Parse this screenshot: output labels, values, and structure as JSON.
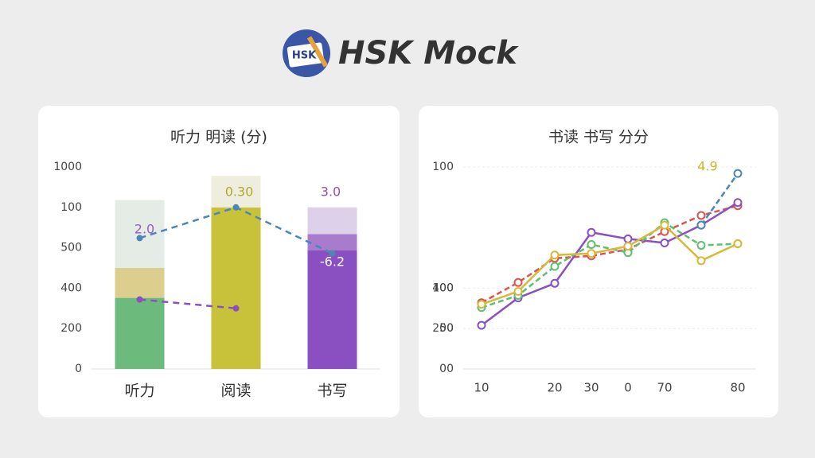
{
  "header": {
    "logo_text": "HSK",
    "title": "HSK Mock"
  },
  "chart_data": [
    {
      "type": "bar",
      "title": "听力 明读 (分)",
      "categories": [
        "听力",
        "阅读",
        "书写"
      ],
      "ylim": [
        0,
        250
      ],
      "yticks": [
        0,
        {
          "value": 50,
          "label": "200"
        },
        {
          "value": 100,
          "label": "400"
        },
        {
          "value": 150,
          "label": "500"
        },
        {
          "value": 200,
          "label": "100"
        },
        {
          "value": 250,
          "label": "1000"
        }
      ],
      "stacks": [
        {
          "colors": [
            "#6dbb7c",
            "#c8c23a",
            "#8a4fc0"
          ],
          "values": [
            88,
            200,
            147
          ]
        },
        {
          "colors": [
            "#dccf8e",
            "#efeede",
            "#a97bcc"
          ],
          "values": [
            37,
            39,
            20
          ]
        },
        {
          "colors": [
            "#e5ece6",
            "#e5ece6",
            "#ddd1ea"
          ],
          "values": [
            84,
            null,
            33
          ]
        }
      ],
      "lines": [
        {
          "color": "#4a86b8",
          "values": [
            162,
            200,
            143
          ]
        },
        {
          "color": "#8a4fc0",
          "values": [
            86,
            75,
            null
          ]
        }
      ],
      "annotations": [
        {
          "text": "2.0",
          "color": "#9a5cc8"
        },
        {
          "text": "0.30",
          "color": "#b0a82a"
        },
        {
          "text": "3.0",
          "color": "#8a4fc0"
        },
        {
          "text": "-6.2",
          "color": "#ffffff"
        }
      ]
    },
    {
      "type": "line",
      "title": "书读 书写 分分",
      "categories": [
        "10",
        null,
        "20",
        "30",
        "0",
        "70",
        null,
        "80"
      ],
      "ylim": [
        0,
        250
      ],
      "yticks": [
        {
          "value": 0,
          "label": "00"
        },
        {
          "value": 50,
          "label": "200"
        },
        {
          "value": 100,
          "label": "400"
        },
        50,
        100,
        {
          "value": 250,
          "label": "100"
        }
      ],
      "grid": true,
      "series": [
        {
          "color": "#d9534f",
          "values": [
            82,
            107,
            137,
            140,
            148,
            170,
            190,
            202
          ]
        },
        {
          "color": "#8a4fc0",
          "values": [
            54,
            88,
            106,
            169,
            161,
            156,
            178,
            206
          ]
        },
        {
          "color": "#5fbf6f",
          "values": [
            76,
            91,
            127,
            154,
            144,
            181,
            153,
            155
          ]
        },
        {
          "color": "#d6b83a",
          "values": [
            80,
            96,
            141,
            143,
            152,
            178,
            134,
            155
          ]
        },
        {
          "color": "#4a86b8",
          "values": [
            null,
            null,
            null,
            null,
            null,
            null,
            178,
            242
          ]
        }
      ],
      "annotations": [
        {
          "text": "4.9",
          "color": "#c8b62a"
        }
      ]
    }
  ]
}
